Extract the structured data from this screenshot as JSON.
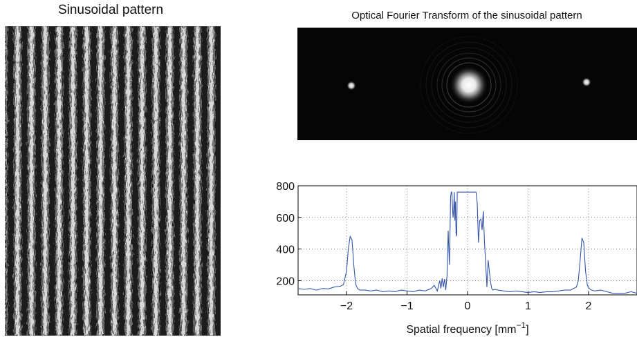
{
  "left_panel": {
    "title": "Sinusoidal pattern"
  },
  "right_panel": {
    "title": "Optical Fourier Transform of the sinusoidal pattern"
  },
  "chart_data": {
    "type": "line",
    "title": "",
    "xlabel_text": "Spatial frequency [mm",
    "xlabel_superscript": "−1",
    "xlabel_suffix": "]",
    "ylabel": "",
    "xlim": [
      -2.8,
      2.8
    ],
    "ylim": [
      110,
      800
    ],
    "xticks": [
      -2,
      -1,
      0,
      1,
      2
    ],
    "xtick_labels": [
      "−2",
      "−1",
      "0",
      "1",
      "2"
    ],
    "yticks": [
      200,
      400,
      600,
      800
    ],
    "ytick_labels": [
      "200",
      "400",
      "600",
      "800"
    ],
    "grid": "dotted",
    "line_color": "#3355aa",
    "series": [
      {
        "x": [
          -2.8,
          -2.7,
          -2.6,
          -2.5,
          -2.4,
          -2.3,
          -2.2,
          -2.1,
          -2.05,
          -2.0,
          -1.97,
          -1.94,
          -1.91,
          -1.88,
          -1.85,
          -1.82,
          -1.78,
          -1.7,
          -1.6,
          -1.5,
          -1.4,
          -1.3,
          -1.2,
          -1.1,
          -1.0,
          -0.9,
          -0.8,
          -0.7,
          -0.6,
          -0.55,
          -0.5,
          -0.46,
          -0.44,
          -0.42,
          -0.4,
          -0.38,
          -0.36,
          -0.34,
          -0.32,
          -0.31,
          -0.3,
          -0.28,
          -0.27,
          -0.26,
          -0.24,
          -0.23,
          -0.22,
          -0.21,
          -0.2,
          -0.19,
          -0.18,
          -0.17,
          -0.16,
          -0.15,
          -0.14,
          -0.13,
          -0.12,
          -0.11,
          -0.1,
          -0.05,
          0.0,
          0.05,
          0.1,
          0.12,
          0.14,
          0.16,
          0.17,
          0.18,
          0.2,
          0.22,
          0.24,
          0.26,
          0.28,
          0.3,
          0.32,
          0.34,
          0.36,
          0.38,
          0.4,
          0.42,
          0.45,
          0.5,
          0.6,
          0.7,
          0.8,
          0.9,
          1.0,
          1.1,
          1.2,
          1.3,
          1.4,
          1.5,
          1.6,
          1.7,
          1.75,
          1.8,
          1.83,
          1.86,
          1.89,
          1.92,
          1.95,
          1.98,
          2.01,
          2.05,
          2.1,
          2.2,
          2.3,
          2.4,
          2.5,
          2.6,
          2.7,
          2.8
        ],
        "y": [
          150,
          145,
          150,
          140,
          150,
          148,
          160,
          165,
          175,
          260,
          400,
          480,
          460,
          300,
          180,
          150,
          140,
          140,
          135,
          140,
          130,
          135,
          130,
          140,
          135,
          130,
          140,
          135,
          150,
          170,
          135,
          200,
          150,
          215,
          160,
          210,
          140,
          230,
          515,
          400,
          300,
          730,
          760,
          760,
          600,
          640,
          760,
          580,
          700,
          500,
          480,
          760,
          760,
          760,
          760,
          760,
          760,
          760,
          760,
          760,
          760,
          760,
          760,
          760,
          760,
          690,
          560,
          440,
          580,
          590,
          520,
          640,
          440,
          300,
          160,
          330,
          260,
          190,
          150,
          140,
          145,
          140,
          135,
          130,
          135,
          130,
          125,
          130,
          125,
          130,
          130,
          135,
          140,
          140,
          150,
          160,
          200,
          330,
          470,
          440,
          260,
          170,
          150,
          140,
          135,
          140,
          130,
          120,
          120,
          120,
          130,
          120
        ]
      }
    ]
  }
}
